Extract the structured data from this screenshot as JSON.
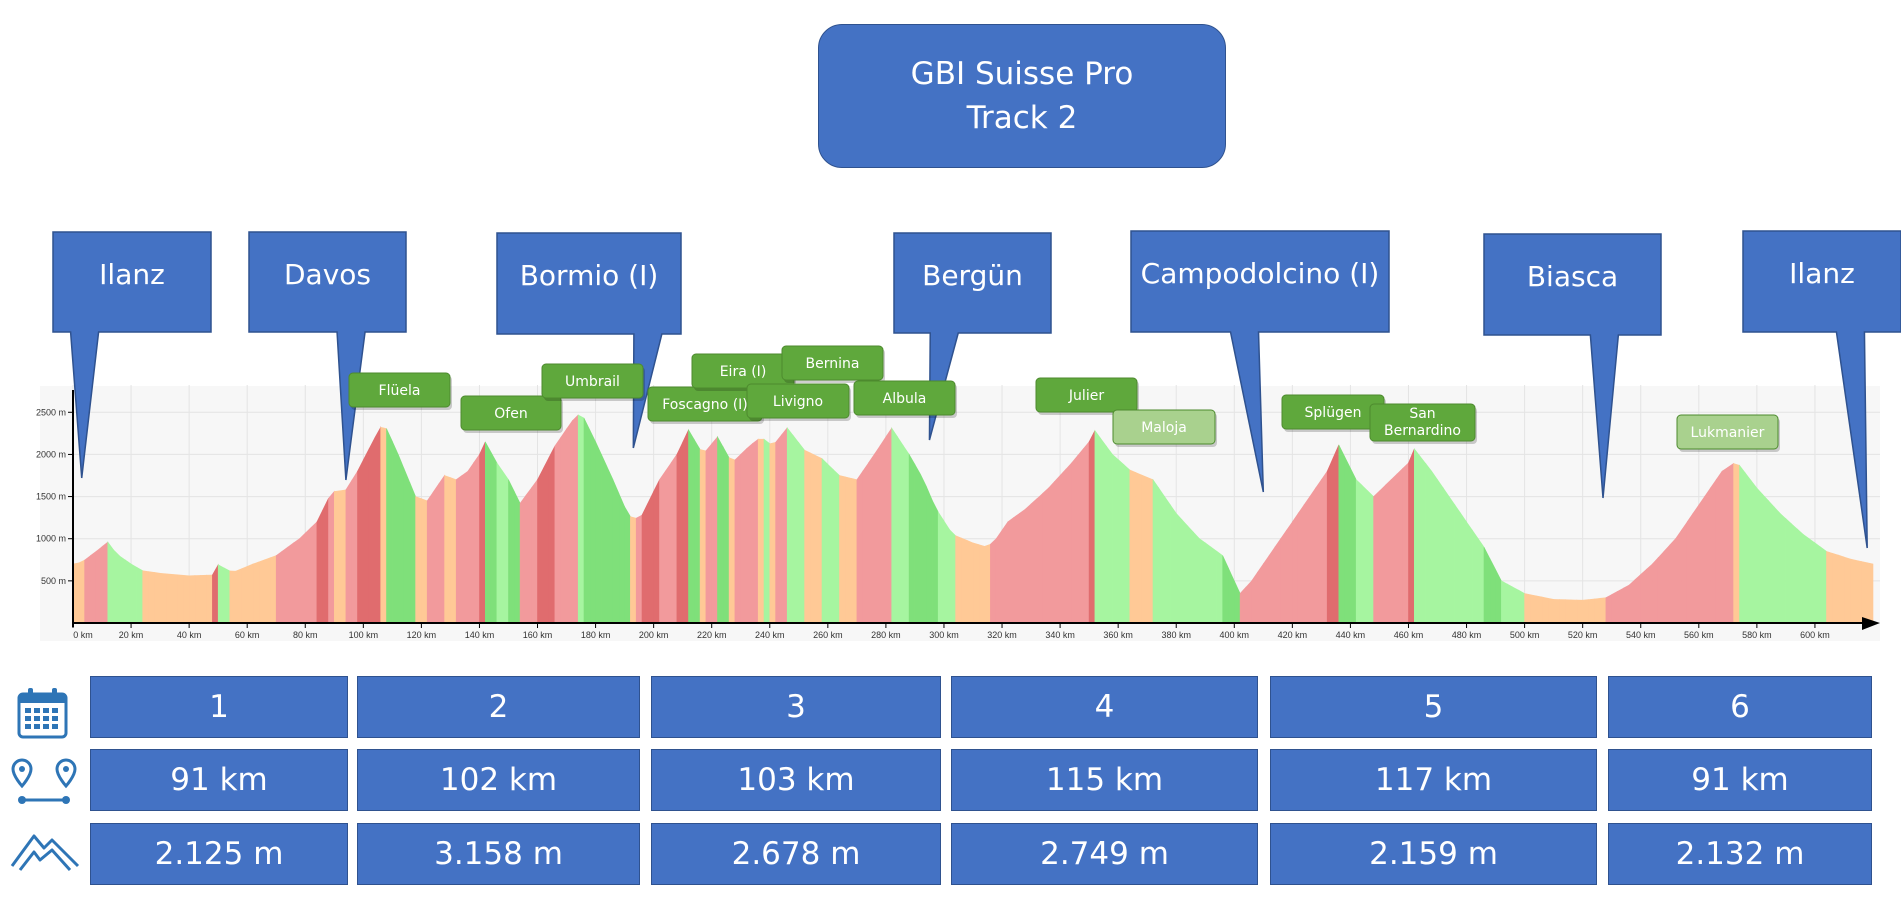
{
  "title": {
    "line1": "GBI Suisse Pro",
    "line2": "Track 2"
  },
  "colors": {
    "box_fill": "#4472c4",
    "box_border": "#2f528f",
    "pass_fill": "#5fa83c",
    "pass_fill_faded": "#a9d18e",
    "steep_dark": "#c9353d",
    "steep": "#e06c6e",
    "moderate_up": "#f29a9c",
    "flat": "#ffc996",
    "down_light": "#a6f5a0",
    "down": "#7fe07a",
    "down_steep": "#4cb84a",
    "icon": "#2e75b6"
  },
  "callouts": [
    {
      "name": "Ilanz",
      "km": 3
    },
    {
      "name": "Davos",
      "km": 94
    },
    {
      "name": "Bormio (I)",
      "km": 193
    },
    {
      "name": "Bergün",
      "km": 295
    },
    {
      "name": "Campodolcino (I)",
      "km": 410
    },
    {
      "name": "Biasca",
      "km": 527
    },
    {
      "name": "Ilanz",
      "km": 618
    }
  ],
  "passes": [
    {
      "name": "Flüela",
      "faded": false
    },
    {
      "name": "Ofen",
      "faded": false
    },
    {
      "name": "Umbrail",
      "faded": false
    },
    {
      "name": "Foscagno (I)",
      "faded": false
    },
    {
      "name": "Eira (I)",
      "faded": false
    },
    {
      "name": "Livigno",
      "faded": false
    },
    {
      "name": "Bernina",
      "faded": false
    },
    {
      "name": "Albula",
      "faded": false
    },
    {
      "name": "Julier",
      "faded": false
    },
    {
      "name": "Maloja",
      "faded": true
    },
    {
      "name": "Splügen",
      "faded": false
    },
    {
      "name": "San Bernardino",
      "faded": false
    },
    {
      "name": "Lukmanier",
      "faded": true
    }
  ],
  "chart_data": {
    "type": "area",
    "xlabel": "",
    "ylabel": "",
    "xlim": [
      0,
      620
    ],
    "ylim": [
      0,
      2800
    ],
    "x_ticks": [
      0,
      20,
      40,
      60,
      80,
      100,
      120,
      140,
      160,
      180,
      200,
      220,
      240,
      260,
      280,
      300,
      320,
      340,
      360,
      380,
      400,
      420,
      440,
      460,
      480,
      500,
      520,
      540,
      560,
      580,
      600
    ],
    "x_tick_labels": [
      "0 km",
      "20 km",
      "40 km",
      "60 km",
      "80 km",
      "100 km",
      "120 km",
      "140 km",
      "160 km",
      "180 km",
      "200 km",
      "220 km",
      "240 km",
      "260 km",
      "280 km",
      "300 km",
      "320 km",
      "340 km",
      "360 km",
      "380 km",
      "400 km",
      "420 km",
      "440 km",
      "460 km",
      "480 km",
      "500 km",
      "520 km",
      "540 km",
      "560 km",
      "580 km",
      "600 km"
    ],
    "y_ticks": [
      500,
      1000,
      1500,
      2000,
      2500
    ],
    "y_tick_labels": [
      "500 m",
      "1000 m",
      "1500 m",
      "2000 m",
      "2500 m"
    ],
    "grid": true,
    "profile": [
      [
        0,
        700
      ],
      [
        3,
        720
      ],
      [
        8,
        850
      ],
      [
        12,
        960
      ],
      [
        15,
        820
      ],
      [
        20,
        700
      ],
      [
        24,
        620
      ],
      [
        30,
        590
      ],
      [
        40,
        560
      ],
      [
        48,
        570
      ],
      [
        50,
        690
      ],
      [
        55,
        600
      ],
      [
        62,
        700
      ],
      [
        70,
        800
      ],
      [
        78,
        1000
      ],
      [
        84,
        1200
      ],
      [
        88,
        1480
      ],
      [
        90,
        1560
      ],
      [
        94,
        1580
      ],
      [
        98,
        1800
      ],
      [
        104,
        2200
      ],
      [
        107,
        2383
      ],
      [
        112,
        2000
      ],
      [
        118,
        1500
      ],
      [
        122,
        1450
      ],
      [
        128,
        1750
      ],
      [
        132,
        1700
      ],
      [
        136,
        1800
      ],
      [
        140,
        2000
      ],
      [
        142,
        2149
      ],
      [
        146,
        1900
      ],
      [
        150,
        1700
      ],
      [
        154,
        1420
      ],
      [
        160,
        1700
      ],
      [
        166,
        2100
      ],
      [
        172,
        2400
      ],
      [
        175,
        2501
      ],
      [
        180,
        2150
      ],
      [
        186,
        1700
      ],
      [
        191,
        1300
      ],
      [
        193,
        1225
      ],
      [
        196,
        1280
      ],
      [
        202,
        1700
      ],
      [
        208,
        2000
      ],
      [
        212,
        2291
      ],
      [
        217,
        2000
      ],
      [
        222,
        2208
      ],
      [
        227,
        1900
      ],
      [
        233,
        2100
      ],
      [
        237,
        2208
      ],
      [
        241,
        2100
      ],
      [
        246,
        2315
      ],
      [
        252,
        2050
      ],
      [
        258,
        1950
      ],
      [
        264,
        1750
      ],
      [
        270,
        1700
      ],
      [
        276,
        2000
      ],
      [
        282,
        2312
      ],
      [
        288,
        2000
      ],
      [
        293,
        1700
      ],
      [
        297,
        1370
      ],
      [
        303,
        1050
      ],
      [
        310,
        950
      ],
      [
        315,
        900
      ],
      [
        318,
        1000
      ],
      [
        322,
        1200
      ],
      [
        328,
        1350
      ],
      [
        336,
        1600
      ],
      [
        344,
        1900
      ],
      [
        350,
        2150
      ],
      [
        352,
        2284
      ],
      [
        358,
        2000
      ],
      [
        364,
        1815
      ],
      [
        372,
        1700
      ],
      [
        380,
        1300
      ],
      [
        388,
        1000
      ],
      [
        396,
        800
      ],
      [
        402,
        350
      ],
      [
        406,
        500
      ],
      [
        412,
        800
      ],
      [
        418,
        1100
      ],
      [
        426,
        1500
      ],
      [
        432,
        1800
      ],
      [
        436,
        2113
      ],
      [
        442,
        1700
      ],
      [
        448,
        1500
      ],
      [
        454,
        1700
      ],
      [
        460,
        1900
      ],
      [
        462,
        2065
      ],
      [
        468,
        1800
      ],
      [
        474,
        1500
      ],
      [
        480,
        1200
      ],
      [
        486,
        900
      ],
      [
        492,
        500
      ],
      [
        500,
        350
      ],
      [
        510,
        280
      ],
      [
        520,
        270
      ],
      [
        528,
        300
      ],
      [
        536,
        450
      ],
      [
        544,
        700
      ],
      [
        552,
        1000
      ],
      [
        560,
        1400
      ],
      [
        568,
        1800
      ],
      [
        573,
        1915
      ],
      [
        580,
        1600
      ],
      [
        588,
        1300
      ],
      [
        596,
        1050
      ],
      [
        604,
        850
      ],
      [
        612,
        760
      ],
      [
        620,
        700
      ]
    ]
  },
  "summary": {
    "rows": [
      {
        "icon": "calendar-icon",
        "values": [
          "1",
          "2",
          "3",
          "4",
          "5",
          "6"
        ]
      },
      {
        "icon": "route-distance-icon",
        "values": [
          "91 km",
          "102 km",
          "103 km",
          "115 km",
          "117 km",
          "91 km"
        ]
      },
      {
        "icon": "mountain-elevation-icon",
        "values": [
          "2.125 m",
          "3.158 m",
          "2.678 m",
          "2.749 m",
          "2.159 m",
          "2.132 m"
        ]
      }
    ]
  }
}
